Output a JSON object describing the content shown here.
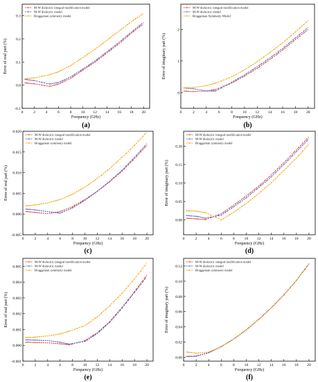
{
  "chart_data": [
    {
      "type": "line",
      "label": "(a)",
      "xlabel": "Frequency (GHz)",
      "ylabel": "Error of real part (%)",
      "xlim": [
        0,
        21
      ],
      "ylim": [
        -0.1,
        0.35
      ],
      "xticks": [
        0,
        2,
        4,
        6,
        8,
        10,
        12,
        14,
        16,
        18,
        20
      ],
      "yticks": [
        -0.1,
        0.0,
        0.1,
        0.2,
        0.3
      ],
      "ytick_labels": [
        "-0.1",
        "0.0",
        "0.1",
        "0.2",
        "0.3"
      ],
      "legend_position": "top-left",
      "x": [
        0.5,
        2,
        4.5,
        6,
        8,
        10,
        12,
        14,
        16,
        18,
        20
      ],
      "series": [
        {
          "name": "M-W dielectric integral modification model",
          "color": "#e03c1f",
          "values": [
            0.01,
            0.006,
            -0.005,
            0.005,
            0.03,
            0.065,
            0.1,
            0.14,
            0.18,
            0.225,
            0.265
          ]
        },
        {
          "name": "M-W dielectric model",
          "color": "#4d5bd6",
          "values": [
            0.025,
            0.02,
            0.005,
            0.012,
            0.036,
            0.07,
            0.105,
            0.145,
            0.186,
            0.23,
            0.272
          ]
        },
        {
          "name": "Bruggeman symmetry model",
          "color": "#f0a000",
          "values": [
            0.028,
            0.032,
            0.045,
            0.058,
            0.085,
            0.12,
            0.155,
            0.195,
            0.235,
            0.275,
            0.31
          ]
        }
      ]
    },
    {
      "type": "line",
      "label": "(b)",
      "xlabel": "Frequency (GHz)",
      "ylabel": "Error of imaginary part (%)",
      "xlim": [
        0,
        21
      ],
      "ylim": [
        -0.5,
        2.8
      ],
      "xticks": [
        0,
        2,
        4,
        6,
        8,
        10,
        12,
        14,
        16,
        18,
        20
      ],
      "yticks": [
        0,
        1,
        2
      ],
      "ytick_labels": [
        "0",
        "1",
        "2"
      ],
      "legend_position": "top-left",
      "x": [
        0.5,
        2,
        4,
        5.5,
        8,
        10,
        12,
        14,
        16,
        18,
        20
      ],
      "series": [
        {
          "name": "M-W dielectric integral modification model",
          "color": "#e03c1f",
          "values": [
            0.05,
            0.03,
            0.05,
            0.1,
            0.3,
            0.52,
            0.77,
            1.05,
            1.35,
            1.68,
            2.0
          ]
        },
        {
          "name": "M-W dielectric model",
          "color": "#4d5bd6",
          "values": [
            0.15,
            0.12,
            0.05,
            0.05,
            0.33,
            0.56,
            0.82,
            1.1,
            1.4,
            1.73,
            2.06
          ]
        },
        {
          "name": "Bruggeman Symmetry Model",
          "color": "#f0a000",
          "values": [
            0.15,
            0.16,
            0.22,
            0.3,
            0.5,
            0.72,
            0.98,
            1.27,
            1.58,
            1.92,
            2.28
          ]
        }
      ]
    },
    {
      "type": "line",
      "label": "(c)",
      "xlabel": "Frequency (GHz)",
      "ylabel": "Error of real part (%)",
      "xlim": [
        0,
        21
      ],
      "ylim": [
        -0.005,
        0.02
      ],
      "xticks": [
        0,
        2,
        4,
        6,
        8,
        10,
        12,
        14,
        16,
        18,
        20
      ],
      "yticks": [
        -0.005,
        0.0,
        0.005,
        0.01,
        0.015,
        0.02
      ],
      "ytick_labels": [
        "-0.005",
        "0.000",
        "0.005",
        "0.010",
        "0.015",
        "0.020"
      ],
      "legend_position": "top-left",
      "x": [
        0.5,
        2,
        4,
        6,
        8,
        10,
        12,
        14,
        16,
        18,
        20
      ],
      "series": [
        {
          "name": "M-W dielectric integral modification model",
          "color": "#e03c1f",
          "values": [
            0.0006,
            0.0004,
            0.0001,
            0.0006,
            0.0018,
            0.0035,
            0.0055,
            0.0078,
            0.0104,
            0.0134,
            0.0166
          ]
        },
        {
          "name": "M-W dielectric model",
          "color": "#4d5bd6",
          "values": [
            0.0012,
            0.001,
            0.0006,
            0.0002,
            0.0015,
            0.0033,
            0.0055,
            0.0079,
            0.0106,
            0.0137,
            0.017
          ]
        },
        {
          "name": "Bruggeman symmetry model",
          "color": "#f0a000",
          "values": [
            0.002,
            0.0022,
            0.0027,
            0.0035,
            0.0048,
            0.0065,
            0.0086,
            0.011,
            0.0137,
            0.0166,
            0.0198
          ]
        }
      ]
    },
    {
      "type": "line",
      "label": "(d)",
      "xlabel": "Frequency (GHz)",
      "ylabel": "Error of imaginary part (%)",
      "xlim": [
        0,
        21
      ],
      "ylim": [
        -0.04,
        0.24
      ],
      "xticks": [
        0,
        2,
        4,
        6,
        8,
        10,
        12,
        14,
        16,
        18,
        20
      ],
      "yticks": [
        0.0,
        0.05,
        0.1,
        0.15,
        0.2
      ],
      "ytick_labels": [
        "0.00",
        "0.05",
        "0.10",
        "0.15",
        "0.20"
      ],
      "legend_position": "top-left",
      "x": [
        0.5,
        2,
        3.5,
        6,
        8,
        10,
        12,
        14,
        16,
        18,
        20
      ],
      "series": [
        {
          "name": "M-W dielectric integral modification model",
          "color": "#e03c1f",
          "values": [
            0.005,
            0.003,
            0.001,
            0.017,
            0.04,
            0.065,
            0.092,
            0.122,
            0.155,
            0.19,
            0.225
          ]
        },
        {
          "name": "M-W dielectric model",
          "color": "#4d5bd6",
          "values": [
            0.012,
            0.01,
            0.005,
            0.013,
            0.036,
            0.06,
            0.088,
            0.117,
            0.15,
            0.185,
            0.22
          ]
        },
        {
          "name": "Bruggeman symmetry model",
          "color": "#f0a000",
          "values": [
            0.025,
            0.024,
            0.02,
            0.0,
            0.021,
            0.045,
            0.072,
            0.101,
            0.134,
            0.168,
            0.205
          ]
        }
      ]
    },
    {
      "type": "line",
      "label": "(e)",
      "xlabel": "Frequency (GHz)",
      "ylabel": "Error of real part (%)",
      "xlim": [
        0,
        21
      ],
      "ylim": [
        -0.001,
        0.0055
      ],
      "xticks": [
        0,
        2,
        4,
        6,
        8,
        10,
        12,
        14,
        16,
        18,
        20
      ],
      "yticks": [
        -0.001,
        0.0,
        0.001,
        0.002,
        0.003,
        0.004,
        0.005
      ],
      "ytick_labels": [
        "-0.001",
        "0.000",
        "0.001",
        "0.002",
        "0.003",
        "0.004",
        "0.005"
      ],
      "legend_position": "top-left",
      "x": [
        0.5,
        2,
        4,
        6,
        7.5,
        10,
        12,
        14,
        16,
        18,
        20
      ],
      "series": [
        {
          "name": "M-W dielectric integral modification model",
          "color": "#e03c1f",
          "values": [
            0.0002,
            0.00018,
            0.00016,
            0.0001,
            3e-05,
            0.0003,
            0.0008,
            0.0015,
            0.0024,
            0.0034,
            0.00445
          ]
        },
        {
          "name": "M-W dielectric model",
          "color": "#4d5bd6",
          "values": [
            0.00035,
            0.00033,
            0.0003,
            0.0002,
            8e-05,
            0.00025,
            0.00075,
            0.00145,
            0.00235,
            0.00335,
            0.00435
          ]
        },
        {
          "name": "Bruggeman symmetry model",
          "color": "#f0a000",
          "values": [
            0.0005,
            0.00052,
            0.0006,
            0.00072,
            0.0009,
            0.00125,
            0.0018,
            0.0025,
            0.0033,
            0.0042,
            0.0052
          ]
        }
      ]
    },
    {
      "type": "line",
      "label": "(f)",
      "xlabel": "Frequency (GHz)",
      "ylabel": "Error of imaginary part (%)",
      "xlim": [
        0,
        21
      ],
      "ylim": [
        -0.005,
        0.13
      ],
      "xticks": [
        0,
        2,
        4,
        6,
        8,
        10,
        12,
        14,
        16,
        18,
        20
      ],
      "yticks": [
        0.0,
        0.02,
        0.04,
        0.06,
        0.08,
        0.1,
        0.12
      ],
      "ytick_labels": [
        "0.00",
        "0.02",
        "0.04",
        "0.06",
        "0.08",
        "0.10",
        "0.12"
      ],
      "legend_position": "top-left",
      "x": [
        0.5,
        2,
        4,
        6,
        8,
        10,
        12,
        14,
        16,
        18,
        20
      ],
      "series": [
        {
          "name": "M-W dielectric integral modification model",
          "color": "#e03c1f",
          "values": [
            0.001,
            0.0015,
            0.006,
            0.014,
            0.024,
            0.036,
            0.05,
            0.065,
            0.082,
            0.101,
            0.123
          ]
        },
        {
          "name": "M-W dielectric model",
          "color": "#4d5bd6",
          "values": [
            0.0012,
            0.0017,
            0.0062,
            0.0142,
            0.0242,
            0.0362,
            0.0502,
            0.0652,
            0.0822,
            0.1012,
            0.1232
          ]
        },
        {
          "name": "Bruggeman symmetry model",
          "color": "#f0a000",
          "values": [
            0.007,
            0.0055,
            0.007,
            0.014,
            0.024,
            0.036,
            0.05,
            0.065,
            0.082,
            0.101,
            0.1225
          ]
        }
      ]
    }
  ]
}
